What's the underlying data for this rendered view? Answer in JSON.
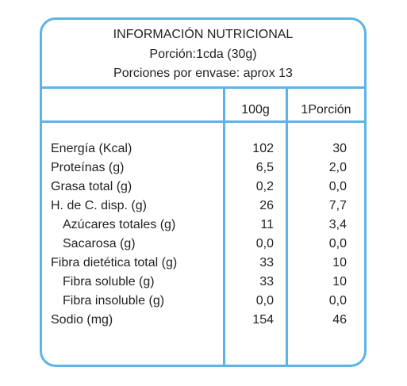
{
  "header": {
    "title": "INFORMACIÓN NUTRICIONAL",
    "serving": "Porción:1cda (30g)",
    "servings_per_container": "Porciones por envase: aprox 13"
  },
  "columns": {
    "per100": "100g",
    "perServing": "1Porción"
  },
  "rows": [
    {
      "label": "Energía (Kcal)",
      "v100": "102",
      "vpor": "30",
      "indent": false
    },
    {
      "label": "Proteínas (g)",
      "v100": "6,5",
      "vpor": "2,0",
      "indent": false
    },
    {
      "label": "Grasa total (g)",
      "v100": "0,2",
      "vpor": "0,0",
      "indent": false
    },
    {
      "label": "H. de C. disp. (g)",
      "v100": "26",
      "vpor": "7,7",
      "indent": false
    },
    {
      "label": "Azúcares totales (g)",
      "v100": "11",
      "vpor": "3,4",
      "indent": true
    },
    {
      "label": "Sacarosa (g)",
      "v100": "0,0",
      "vpor": "0,0",
      "indent": true
    },
    {
      "label": "Fibra dietética total (g)",
      "v100": "33",
      "vpor": "10",
      "indent": false
    },
    {
      "label": "Fibra soluble (g)",
      "v100": "33",
      "vpor": "10",
      "indent": true
    },
    {
      "label": "Fibra insoluble (g)",
      "v100": "0,0",
      "vpor": "0,0",
      "indent": true
    },
    {
      "label": "Sodio (mg)",
      "v100": "154",
      "vpor": "46",
      "indent": false
    }
  ],
  "colors": {
    "border": "#5ab4e5",
    "text": "#231f20"
  }
}
